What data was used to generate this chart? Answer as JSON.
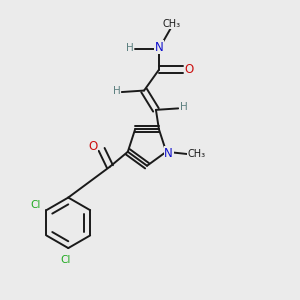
{
  "bg_color": "#ebebeb",
  "bond_color": "#1a1a1a",
  "bond_width": 1.4,
  "dbo": 0.012,
  "atom_colors": {
    "C": "#1a1a1a",
    "H": "#5c8080",
    "N": "#1111cc",
    "O": "#cc1111",
    "Cl": "#22aa22"
  },
  "fs_large": 8.5,
  "fs_medium": 7.5,
  "fs_small": 7.0
}
